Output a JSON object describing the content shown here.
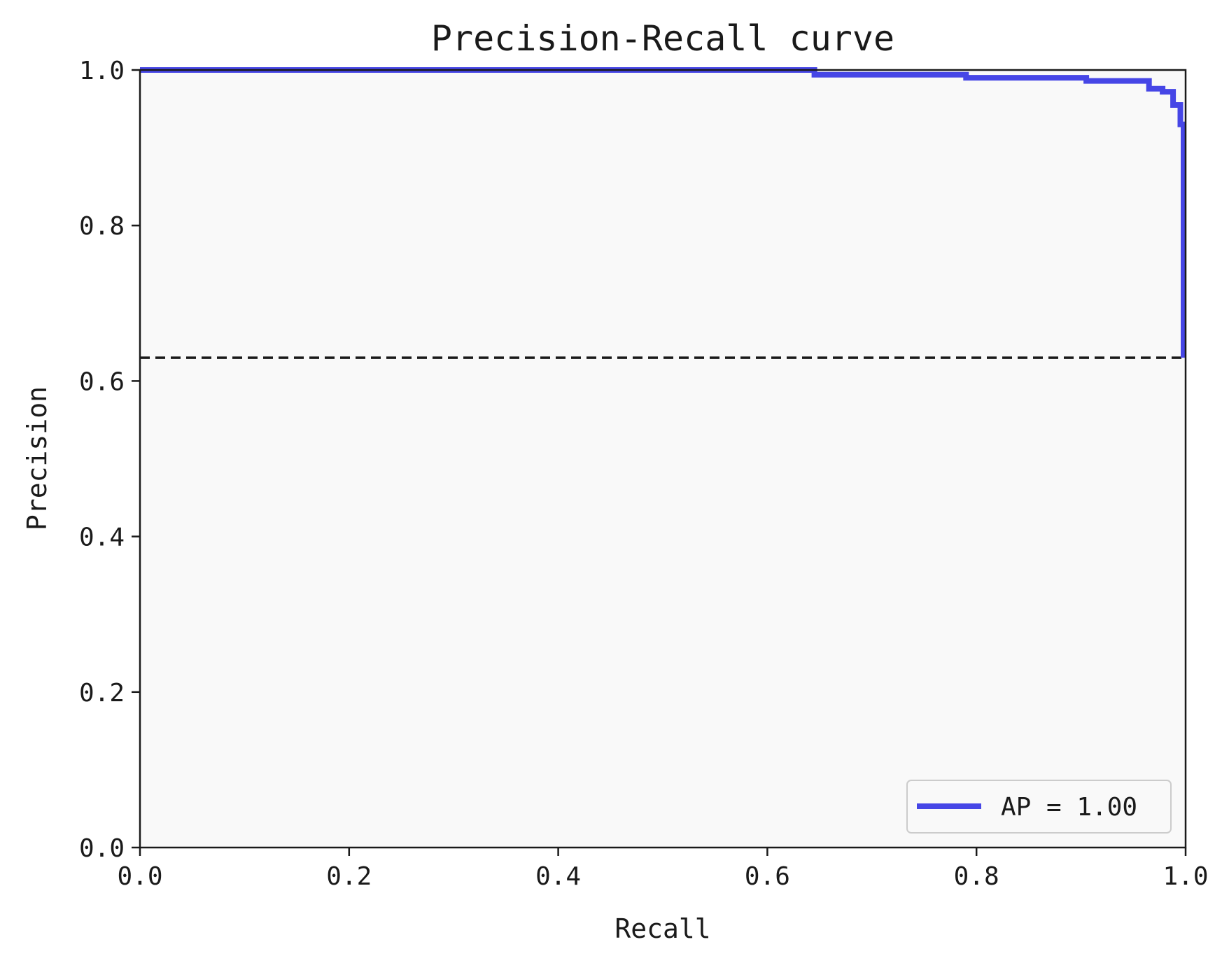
{
  "chart_data": {
    "type": "line",
    "title": "Precision-Recall curve",
    "xlabel": "Recall",
    "ylabel": "Precision",
    "xlim": [
      0,
      1
    ],
    "ylim": [
      0,
      1
    ],
    "x_ticks": [
      "0.0",
      "0.2",
      "0.4",
      "0.6",
      "0.8",
      "1.0"
    ],
    "y_ticks": [
      "0.0",
      "0.2",
      "0.4",
      "0.6",
      "0.8",
      "1.0"
    ],
    "grid": false,
    "legend_position": "lower-right",
    "series": [
      {
        "name": "AP = 1.00",
        "color": "#4646e6",
        "x": [
          0.0,
          0.645,
          0.645,
          0.79,
          0.79,
          0.905,
          0.905,
          0.965,
          0.965,
          0.978,
          0.978,
          0.988,
          0.988,
          0.995,
          0.995,
          0.998,
          0.998
        ],
        "y": [
          1.0,
          1.0,
          0.994,
          0.994,
          0.99,
          0.99,
          0.986,
          0.986,
          0.976,
          0.976,
          0.972,
          0.972,
          0.955,
          0.955,
          0.93,
          0.93,
          0.63
        ]
      }
    ],
    "baseline": {
      "y": 0.63,
      "style": "dashed",
      "color": "#1a1a1a"
    },
    "plot_background": "#f9f9f9"
  }
}
